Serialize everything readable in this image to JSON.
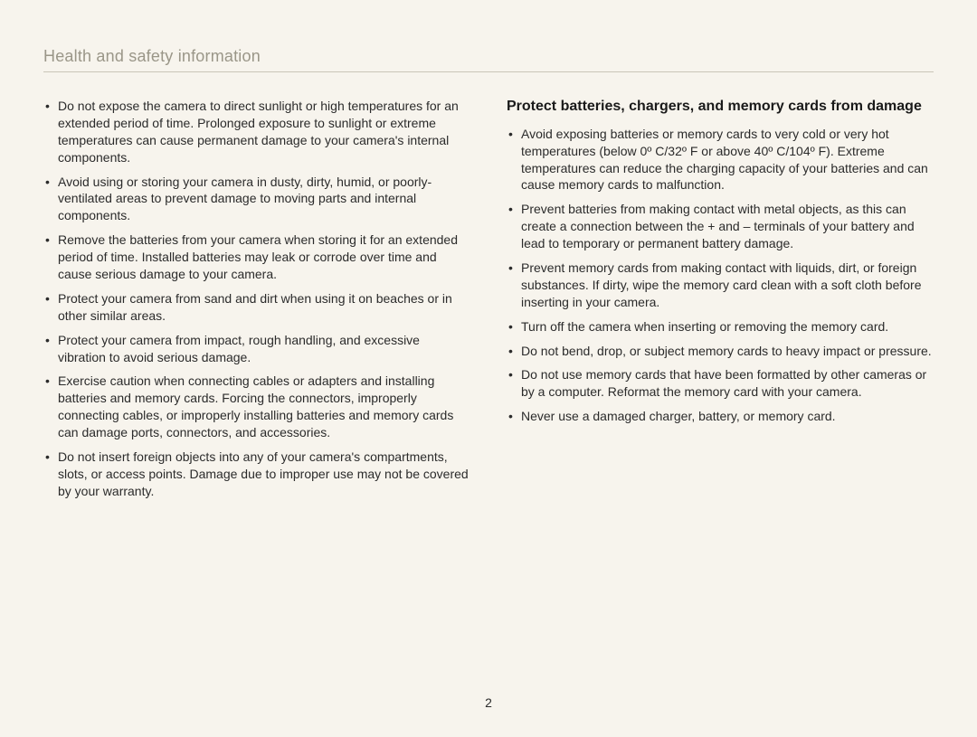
{
  "header": {
    "title": "Health and safety information"
  },
  "left_column": {
    "bullets": [
      "Do not expose the camera to direct sunlight or high temperatures for an extended period of time. Prolonged exposure to sunlight or extreme temperatures can cause permanent damage to your camera's internal components.",
      "Avoid using or storing your camera in dusty, dirty, humid, or poorly-ventilated areas to prevent damage to moving parts and internal components.",
      "Remove the batteries from your camera when storing it for an extended period of time. Installed batteries may leak or corrode over time and cause serious damage to your camera.",
      "Protect your camera from sand and dirt when using it on beaches or in other similar areas.",
      "Protect your camera from impact, rough handling, and excessive vibration to avoid serious damage.",
      "Exercise caution when connecting cables or adapters and installing batteries and memory cards. Forcing the connectors, improperly connecting cables, or improperly installing batteries and memory cards can damage ports, connectors, and accessories.",
      "Do not insert foreign objects into any of your camera's compartments, slots, or access points. Damage due to improper use may not be covered by your warranty."
    ]
  },
  "right_column": {
    "heading": "Protect batteries, chargers, and memory cards from damage",
    "bullets": [
      "Avoid exposing batteries or memory cards to very cold or very hot temperatures (below 0º C/32º F or above 40º C/104º F). Extreme temperatures can reduce the charging capacity of your batteries and can cause memory cards to malfunction.",
      "Prevent batteries from making contact with metal objects, as this can create a connection between the + and – terminals of your battery and lead to temporary or permanent battery damage.",
      "Prevent memory cards from making contact with liquids, dirt, or foreign substances. If dirty, wipe the memory card clean with a soft cloth before inserting in your camera.",
      "Turn off the camera when inserting or removing the memory card.",
      "Do not bend, drop, or subject memory cards to heavy impact or pressure.",
      "Do not use memory cards that have been formatted by other cameras or by a computer. Reformat the memory card with your camera.",
      "Never use a damaged charger, battery, or memory card."
    ]
  },
  "page_number": "2",
  "style": {
    "background_color": "#f7f4ed",
    "header_color": "#9a9688",
    "header_border_color": "#c9c5b8",
    "text_color": "#2b2b2b",
    "heading_color": "#1a1a1a",
    "body_fontsize": 14,
    "heading_fontsize": 16,
    "header_fontsize": 18
  }
}
